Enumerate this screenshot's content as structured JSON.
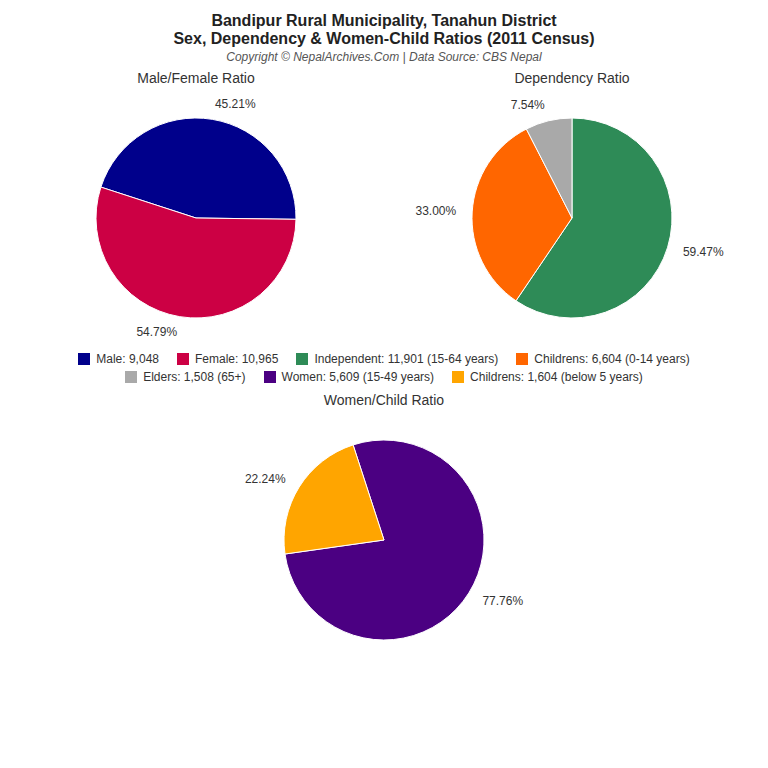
{
  "title": "Bandipur Rural Municipality, Tanahun District\nSex, Dependency & Women-Child Ratios (2011 Census)",
  "subtitle": "Copyright © NepalArchives.Com | Data Source: CBS Nepal",
  "chart_data": [
    {
      "type": "pie",
      "title": "Male/Female Ratio",
      "categories": [
        "Male: 9,048",
        "Female: 10,965"
      ],
      "values": [
        45.21,
        54.79
      ],
      "value_labels": [
        "45.21%",
        "54.79%"
      ],
      "colors": [
        "#00008B",
        "#CC0044"
      ],
      "data_labels": true,
      "legend": "bottom"
    },
    {
      "type": "pie",
      "title": "Dependency Ratio",
      "categories": [
        "Independent: 11,901 (15-64 years)",
        "Childrens: 6,604 (0-14 years)",
        "Elders: 1,508 (65+)"
      ],
      "values": [
        59.47,
        33.0,
        7.54
      ],
      "value_labels": [
        "59.47%",
        "33.00%",
        "7.54%"
      ],
      "colors": [
        "#2E8B57",
        "#FF6600",
        "#A9A9A9"
      ],
      "data_labels": true,
      "legend": "bottom"
    },
    {
      "type": "pie",
      "title": "Women/Child Ratio",
      "categories": [
        "Women: 5,609 (15-49 years)",
        "Childrens: 1,604 (below 5 years)"
      ],
      "values": [
        77.76,
        22.24
      ],
      "value_labels": [
        "77.76%",
        "22.24%"
      ],
      "colors": [
        "#4B0082",
        "#FFA500"
      ],
      "data_labels": true,
      "legend": "top"
    }
  ]
}
